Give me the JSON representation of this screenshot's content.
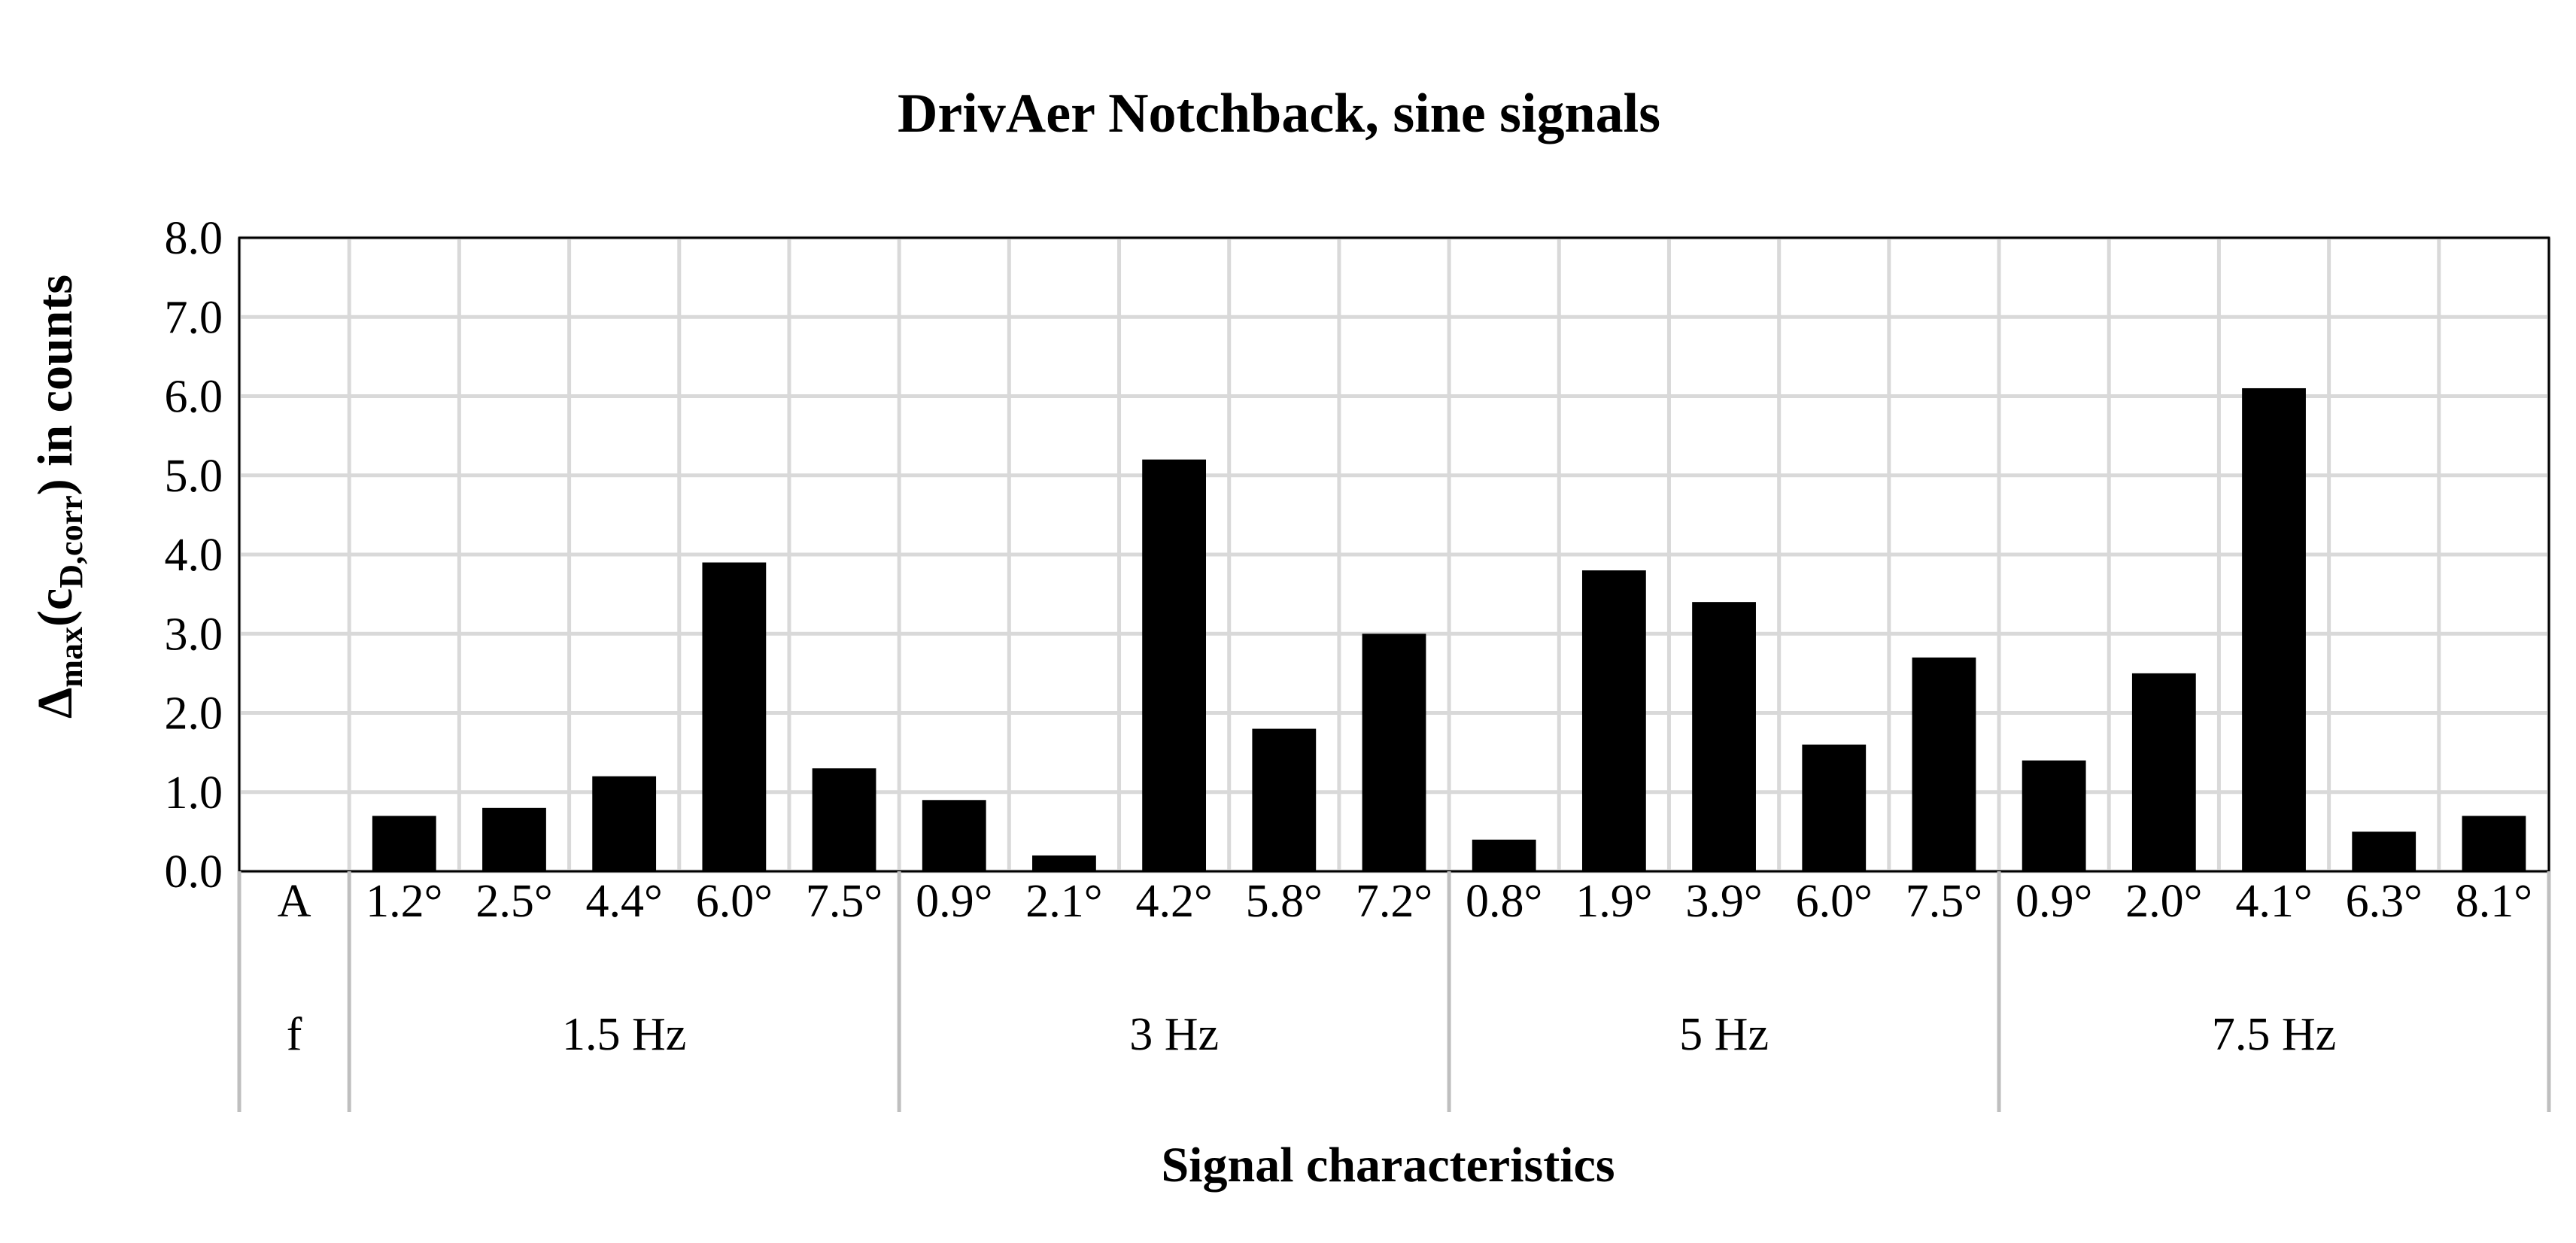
{
  "chart_data": {
    "type": "bar",
    "title": "DrivAer Notchback, sine signals",
    "ylabel_main": "Δ",
    "ylabel_sub": "max",
    "ylabel_mid": "(c",
    "ylabel_sub2": "D,corr",
    "ylabel_end": ") in counts",
    "xlabel": "Signal characteristics",
    "ylim": [
      0,
      8
    ],
    "yticks": [
      "0.0",
      "1.0",
      "2.0",
      "3.0",
      "4.0",
      "5.0",
      "6.0",
      "7.0",
      "8.0"
    ],
    "row_labels": {
      "amplitude": "A",
      "frequency": "f"
    },
    "groups": [
      {
        "label": "1.5 Hz",
        "categories": [
          "1.2°",
          "2.5°",
          "4.4°",
          "6.0°",
          "7.5°"
        ],
        "values": [
          0.7,
          0.8,
          1.2,
          3.9,
          1.3
        ]
      },
      {
        "label": "3 Hz",
        "categories": [
          "0.9°",
          "2.1°",
          "4.2°",
          "5.8°",
          "7.2°"
        ],
        "values": [
          0.9,
          0.2,
          5.2,
          1.8,
          3.0
        ]
      },
      {
        "label": "5 Hz",
        "categories": [
          "0.8°",
          "1.9°",
          "3.9°",
          "6.0°",
          "7.5°"
        ],
        "values": [
          0.4,
          3.8,
          3.4,
          1.6,
          2.7
        ]
      },
      {
        "label": "7.5 Hz",
        "categories": [
          "0.9°",
          "2.0°",
          "4.1°",
          "6.3°",
          "8.1°"
        ],
        "values": [
          1.4,
          2.5,
          6.1,
          0.5,
          0.7
        ]
      }
    ],
    "grid": true,
    "bar_color": "#000000",
    "grid_color": "#d9d9d9"
  }
}
